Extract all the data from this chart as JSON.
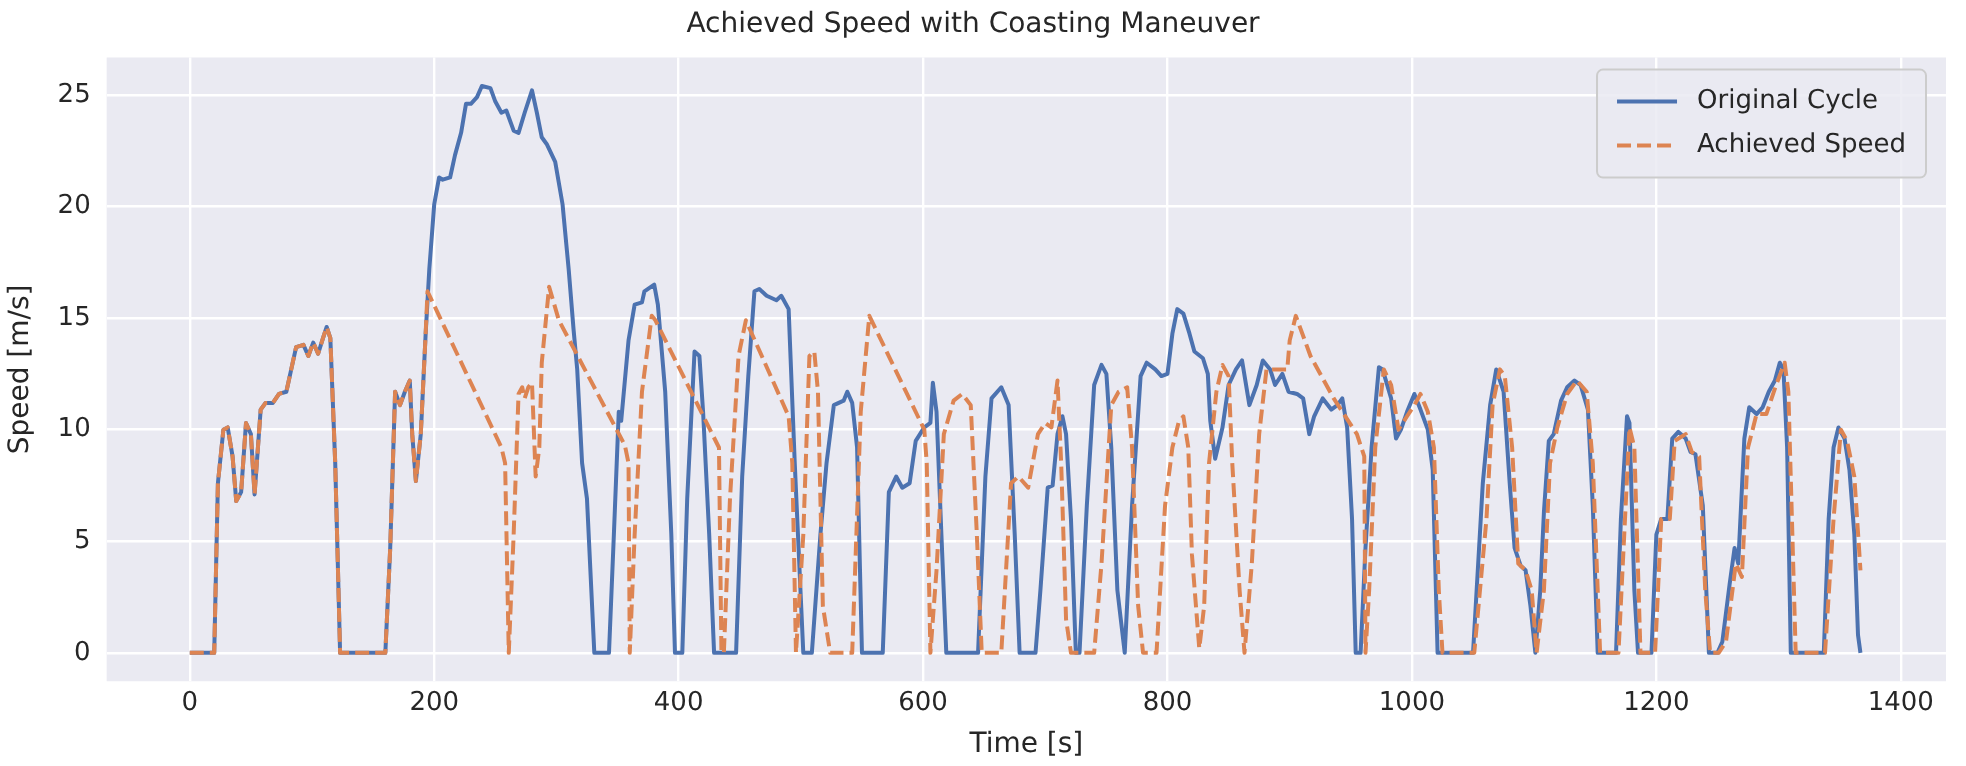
{
  "chart_data": {
    "type": "line",
    "title": "Achieved Speed with Coasting Maneuver",
    "xlabel": "Time [s]",
    "ylabel": "Speed [m/s]",
    "xlim": [
      -68,
      1437
    ],
    "ylim": [
      -1.27,
      26.67
    ],
    "xticks": [
      0,
      200,
      400,
      600,
      800,
      1000,
      1200,
      1400
    ],
    "yticks": [
      0,
      5,
      10,
      15,
      20,
      25
    ],
    "grid": true,
    "legend": "top right",
    "series": [
      {
        "name": "Original Cycle",
        "color": "#4c72b0",
        "line_style": "solid",
        "x": [
          0,
          20,
          23,
          27.5,
          31,
          35,
          38,
          42,
          46,
          50,
          53,
          58,
          62,
          68,
          73,
          79,
          83,
          87,
          93,
          97,
          101,
          105,
          109,
          112,
          115,
          119,
          123,
          160,
          164,
          168,
          172,
          176,
          180,
          182,
          185,
          189,
          193,
          196,
          200,
          204,
          207,
          213,
          217,
          222,
          226,
          230,
          235,
          239,
          246,
          250,
          255,
          259,
          265,
          269,
          274,
          280,
          284,
          288,
          292,
          299,
          305,
          310,
          314,
          317,
          321,
          325,
          331,
          343,
          347,
          351,
          353,
          359,
          364,
          370,
          372,
          380,
          383,
          389,
          394,
          397,
          403,
          407,
          413,
          417,
          420,
          425,
          429,
          447,
          452,
          457,
          462,
          466,
          472,
          480,
          484,
          490,
          495,
          502,
          509,
          516,
          521,
          527,
          535,
          538,
          542,
          546,
          550,
          567,
          572,
          578,
          583,
          589,
          594,
          601,
          606,
          608,
          611,
          615,
          619,
          645,
          651,
          656,
          664,
          670,
          675,
          679,
          692,
          696,
          702,
          706,
          710,
          714,
          717,
          721,
          725,
          728,
          734,
          740,
          746,
          750,
          754,
          759,
          765,
          771,
          778,
          783,
          790,
          795,
          800,
          804,
          808,
          813,
          818,
          822,
          829,
          833,
          835,
          839,
          845,
          850,
          856,
          861,
          867,
          873,
          878,
          884,
          888,
          894,
          899,
          906,
          911,
          916,
          920,
          927,
          934,
          939,
          943,
          947,
          951,
          954,
          958,
          962,
          967,
          973,
          976,
          983,
          987,
          991,
          996,
          1002,
          1007,
          1013,
          1017,
          1021,
          1050,
          1058,
          1064,
          1069,
          1075,
          1080,
          1084,
          1089,
          1093,
          1097,
          1101,
          1105,
          1108,
          1112,
          1116,
          1122,
          1127,
          1133,
          1138,
          1144,
          1148,
          1152,
          1167,
          1171,
          1176,
          1178,
          1182,
          1185,
          1196,
          1200,
          1204,
          1209,
          1213,
          1218,
          1224,
          1228,
          1232,
          1238,
          1243,
          1250,
          1254,
          1260,
          1264,
          1267,
          1272,
          1276,
          1282,
          1287,
          1292,
          1297,
          1301,
          1304,
          1307,
          1310,
          1337,
          1341,
          1345,
          1349,
          1354,
          1358,
          1362,
          1365,
          1367
        ],
        "values": [
          0,
          0,
          7.6,
          10,
          10.1,
          8.8,
          6.8,
          7.2,
          10.3,
          9.8,
          7.1,
          10.9,
          11.2,
          11.2,
          11.6,
          11.7,
          12.7,
          13.7,
          13.8,
          13.3,
          13.9,
          13.4,
          14.1,
          14.6,
          14.1,
          8.5,
          0,
          0,
          4.7,
          11.7,
          11.1,
          11.7,
          12.2,
          9.8,
          7.7,
          9.8,
          14.3,
          17.2,
          20.1,
          21.3,
          21.2,
          21.3,
          22.3,
          23.3,
          24.6,
          24.6,
          24.9,
          25.4,
          25.3,
          24.7,
          24.2,
          24.3,
          23.4,
          23.3,
          24.2,
          25.2,
          24.2,
          23.1,
          22.8,
          22,
          20.1,
          17.2,
          14.5,
          12.7,
          8.5,
          6.9,
          0,
          0,
          5.3,
          10.8,
          10.4,
          14,
          15.6,
          15.7,
          16.2,
          16.5,
          15.6,
          11.7,
          5.3,
          0,
          0,
          6.9,
          13.5,
          13.3,
          10.8,
          5.3,
          0,
          0,
          7.9,
          12.4,
          16.2,
          16.3,
          16,
          15.8,
          16,
          15.4,
          8.5,
          0,
          0,
          5.3,
          8.5,
          11.1,
          11.3,
          11.7,
          11.2,
          9.2,
          0,
          0,
          7.2,
          7.9,
          7.4,
          7.6,
          9.5,
          10.1,
          10.3,
          12.1,
          10.8,
          5.3,
          0,
          0,
          7.9,
          11.4,
          11.9,
          11.1,
          5.3,
          0,
          0,
          2.8,
          7.4,
          7.5,
          9.8,
          10.6,
          9.8,
          6,
          0,
          0,
          6.6,
          12,
          12.9,
          12.5,
          9.2,
          2.8,
          0,
          6.6,
          12.4,
          13,
          12.7,
          12.4,
          12.5,
          14.3,
          15.4,
          15.2,
          14.3,
          13.5,
          13.2,
          12.5,
          10.4,
          8.7,
          10.1,
          12,
          12.7,
          13.1,
          11.1,
          12,
          13.1,
          12.7,
          12,
          12.5,
          11.7,
          11.6,
          11.4,
          9.8,
          10.6,
          11.4,
          10.9,
          11.1,
          11.4,
          10.1,
          6,
          0,
          0,
          4.7,
          9.2,
          12.8,
          12.7,
          11.4,
          9.6,
          10,
          10.8,
          11.6,
          10.9,
          10,
          8.2,
          0,
          0,
          7.6,
          11.1,
          12.7,
          11.7,
          7.6,
          4.7,
          3.9,
          3.7,
          2.1,
          0,
          2.8,
          6.3,
          9.5,
          9.8,
          11.3,
          11.9,
          12.2,
          12,
          10.9,
          6.6,
          0,
          0,
          6,
          10.6,
          10.3,
          2.8,
          0,
          0,
          5.3,
          6,
          6,
          9.6,
          9.9,
          9.6,
          9,
          8.9,
          6.6,
          0,
          0,
          0.5,
          3.1,
          4.7,
          4,
          9.6,
          11,
          10.7,
          11,
          11.7,
          12.2,
          13,
          12.7,
          9.2,
          0,
          0,
          6,
          9.2,
          10.1,
          9.6,
          8.2,
          5.3,
          0.8,
          0
        ]
      },
      {
        "name": "Achieved Speed",
        "color": "#dd8452",
        "line_style": "dashed",
        "x": [
          0,
          20,
          23,
          27.5,
          31,
          35,
          38,
          42,
          46,
          50,
          53,
          58,
          62,
          68,
          73,
          79,
          83,
          87,
          93,
          97,
          101,
          105,
          109,
          112,
          115,
          119,
          123,
          160,
          164,
          168,
          172,
          176,
          180,
          182,
          185,
          189,
          193,
          194.5,
          255,
          258,
          261,
          265,
          269,
          272,
          274,
          277,
          280,
          283,
          286,
          288,
          294,
          302,
          356,
          359,
          360,
          364,
          370,
          378,
          381,
          433,
          435,
          437,
          442,
          449,
          455,
          490,
          493,
          496,
          502,
          507,
          511,
          514,
          518,
          524,
          542,
          549,
          556,
          601,
          603,
          606,
          611,
          617,
          625,
          632,
          639,
          644,
          648,
          664,
          672,
          678,
          686,
          694,
          700,
          705,
          710,
          713,
          717,
          721,
          740,
          746,
          754,
          760,
          767,
          771,
          776,
          780,
          791,
          798,
          804,
          809,
          813,
          817,
          820,
          826,
          830,
          834,
          840,
          845,
          850,
          853,
          859,
          863,
          869,
          875,
          881,
          889,
          898,
          900,
          905,
          917,
          936,
          955,
          961,
          962,
          965,
          970,
          977,
          983,
          989,
          996,
          1002,
          1007,
          1013,
          1018,
          1022,
          1025,
          1051,
          1061,
          1066,
          1072,
          1076,
          1082,
          1087,
          1093,
          1098,
          1102,
          1108,
          1113,
          1119,
          1127,
          1135,
          1143,
          1148,
          1154,
          1169,
          1178,
          1182,
          1187,
          1199,
          1204,
          1211,
          1215,
          1224,
          1229,
          1235,
          1240,
          1244,
          1251,
          1257,
          1265,
          1270,
          1275,
          1282,
          1290,
          1298,
          1305,
          1308,
          1314,
          1338,
          1345,
          1351,
          1356,
          1362,
          1367
        ],
        "values": [
          0,
          0,
          7.6,
          10,
          10.1,
          8.8,
          6.8,
          7.2,
          10.3,
          9.8,
          7.1,
          10.9,
          11.2,
          11.2,
          11.6,
          11.7,
          12.7,
          13.7,
          13.8,
          13.3,
          13.9,
          13.4,
          14.1,
          14.6,
          14.1,
          8.5,
          0,
          0,
          4.7,
          11.7,
          11.1,
          11.7,
          12.2,
          9.8,
          7.7,
          9.8,
          14.3,
          16.2,
          9.2,
          8.5,
          0,
          5.3,
          11.6,
          11.9,
          11.4,
          11.9,
          12.1,
          7.9,
          9.2,
          13,
          16.4,
          14.9,
          9.3,
          8.5,
          0,
          5.3,
          11.7,
          15.1,
          14.9,
          9.2,
          0,
          0,
          6.9,
          13.3,
          14.9,
          10.6,
          8.5,
          0,
          5.3,
          13.3,
          13.5,
          11.7,
          2.1,
          0,
          0,
          10.8,
          15.1,
          10,
          8.5,
          0,
          3.7,
          9.8,
          11.3,
          11.6,
          11.1,
          5.3,
          0,
          0,
          7.6,
          7.9,
          7.4,
          9.8,
          10.3,
          10.1,
          12.2,
          8.5,
          1.5,
          0,
          0,
          4,
          11.1,
          11.7,
          11.9,
          9.2,
          2.1,
          0,
          0,
          6.6,
          9.2,
          10.3,
          10.6,
          9.2,
          4.4,
          0.2,
          2.1,
          8.5,
          11.7,
          12.9,
          12.4,
          8.5,
          2.8,
          0,
          4,
          9.8,
          12.7,
          12.7,
          12.7,
          14,
          15.1,
          13.3,
          11.4,
          9.8,
          8.8,
          0,
          2.8,
          9.2,
          12.7,
          12,
          10,
          10.6,
          11.1,
          11.6,
          10.8,
          9.2,
          2.8,
          0,
          0,
          6,
          11.1,
          12.7,
          12.4,
          9.2,
          4,
          3.7,
          2.8,
          0,
          2.8,
          8.5,
          10.1,
          11.6,
          12.2,
          11.7,
          8.5,
          0,
          0,
          10.1,
          9.2,
          0,
          0,
          6,
          6,
          9.5,
          9.8,
          9,
          8.8,
          2.8,
          0,
          0,
          0.5,
          4,
          3.4,
          9.2,
          10.7,
          10.7,
          12,
          13,
          11.7,
          0,
          0,
          6,
          10,
          9.5,
          7.9,
          3.7
        ]
      }
    ]
  }
}
